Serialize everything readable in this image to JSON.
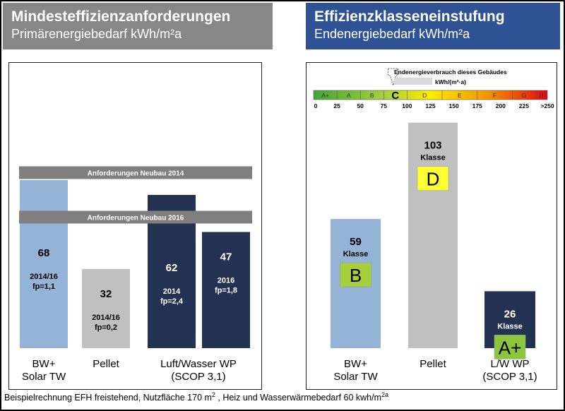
{
  "left": {
    "title": "Mindesteffizienzanforderungen",
    "subtitle": "Primärenergiebedarf kWh/m²a",
    "colors": {
      "header": "#878787",
      "bar1": "#95b3d7",
      "bar2": "#c0c0c0",
      "bar3": "#243252",
      "bar4": "#243252"
    }
  },
  "right": {
    "title": "Effizienzklasseneinstufung",
    "subtitle": "Endenergiebedarf  kWh/m²a",
    "colors": {
      "header": "#2e5293"
    }
  },
  "footer": {
    "text": "Beispielrechnung EFH freistehend, Nutzfläche  170 m",
    "sup1": "2",
    "text2": " , Heiz und Wasserwärmebedarf  60 kwh/m",
    "sup2": "2a"
  },
  "chart_data": [
    {
      "type": "bar",
      "title": "Mindesteffizienzanforderungen",
      "subtitle": "Primärenergiebedarf kWh/m²a",
      "ylim": [
        0,
        100
      ],
      "bars": [
        {
          "group": "BW+\nSolar TW",
          "value": 68,
          "label": "68",
          "sublabel1": "2014/16",
          "sublabel2": "fp=1,1",
          "color": "#95b3d7"
        },
        {
          "group": "Pellet",
          "value": 32,
          "label": "32",
          "sublabel1": "2014/16",
          "sublabel2": "fp=0,2",
          "color": "#c0c0c0"
        },
        {
          "group": "Luft/Wasser  WP\n(SCOP 3,1)",
          "value": 62,
          "label": "62",
          "sublabel1": "2014",
          "sublabel2": "fp=2,4",
          "color": "#243252"
        },
        {
          "group": "Luft/Wasser  WP\n(SCOP 3,1)",
          "value": 47,
          "label": "47",
          "sublabel1": "2016",
          "sublabel2": "fp=1,8",
          "color": "#243252"
        }
      ],
      "category_labels": [
        {
          "lines": [
            "BW+",
            "Solar TW"
          ]
        },
        {
          "lines": [
            "Pellet"
          ]
        },
        {
          "lines": [
            "Luft/Wasser  WP",
            "(SCOP 3,1)"
          ]
        }
      ],
      "reference_lines": [
        {
          "label": "Anforderungen Neubau 2014",
          "value": 71
        },
        {
          "label": "Anforderungen Neubau 2016",
          "value": 53
        }
      ]
    },
    {
      "type": "bar",
      "title": "Effizienzklasseneinstufung",
      "subtitle": "Endenergiebedarf  kWh/m²a",
      "ylim": [
        0,
        130
      ],
      "bars": [
        {
          "category_lines": [
            "BW+",
            "Solar TW"
          ],
          "value": 59,
          "label": "59",
          "class_word": "Klasse",
          "class": "B",
          "class_color": "#a6cf3d",
          "color": "#95b3d7"
        },
        {
          "category_lines": [
            "Pellet"
          ],
          "value": 103,
          "label": "103",
          "class_word": "Klasse",
          "class": "D",
          "class_color": "#ffff33",
          "color": "#c0c0c0"
        },
        {
          "category_lines": [
            "L/W WP",
            "(SCOP 3,1)"
          ],
          "value": 26,
          "label": "26",
          "class_word": "Klasse",
          "class": "A+",
          "class_color": "#8cc63f",
          "color": "#243252"
        }
      ],
      "scale": {
        "legend_line1": "Endenergieverbrauch dieses Gebäudes",
        "legend_line2": "kWh/(m²·a)",
        "marker_class": "C",
        "classes": [
          "A+",
          "A",
          "B",
          "C",
          "D",
          "E",
          "F",
          "G",
          "H"
        ],
        "ticks": [
          "0",
          "25",
          "50",
          "75",
          "100",
          "125",
          "150",
          "175",
          "200",
          "225",
          ">250"
        ]
      }
    }
  ]
}
